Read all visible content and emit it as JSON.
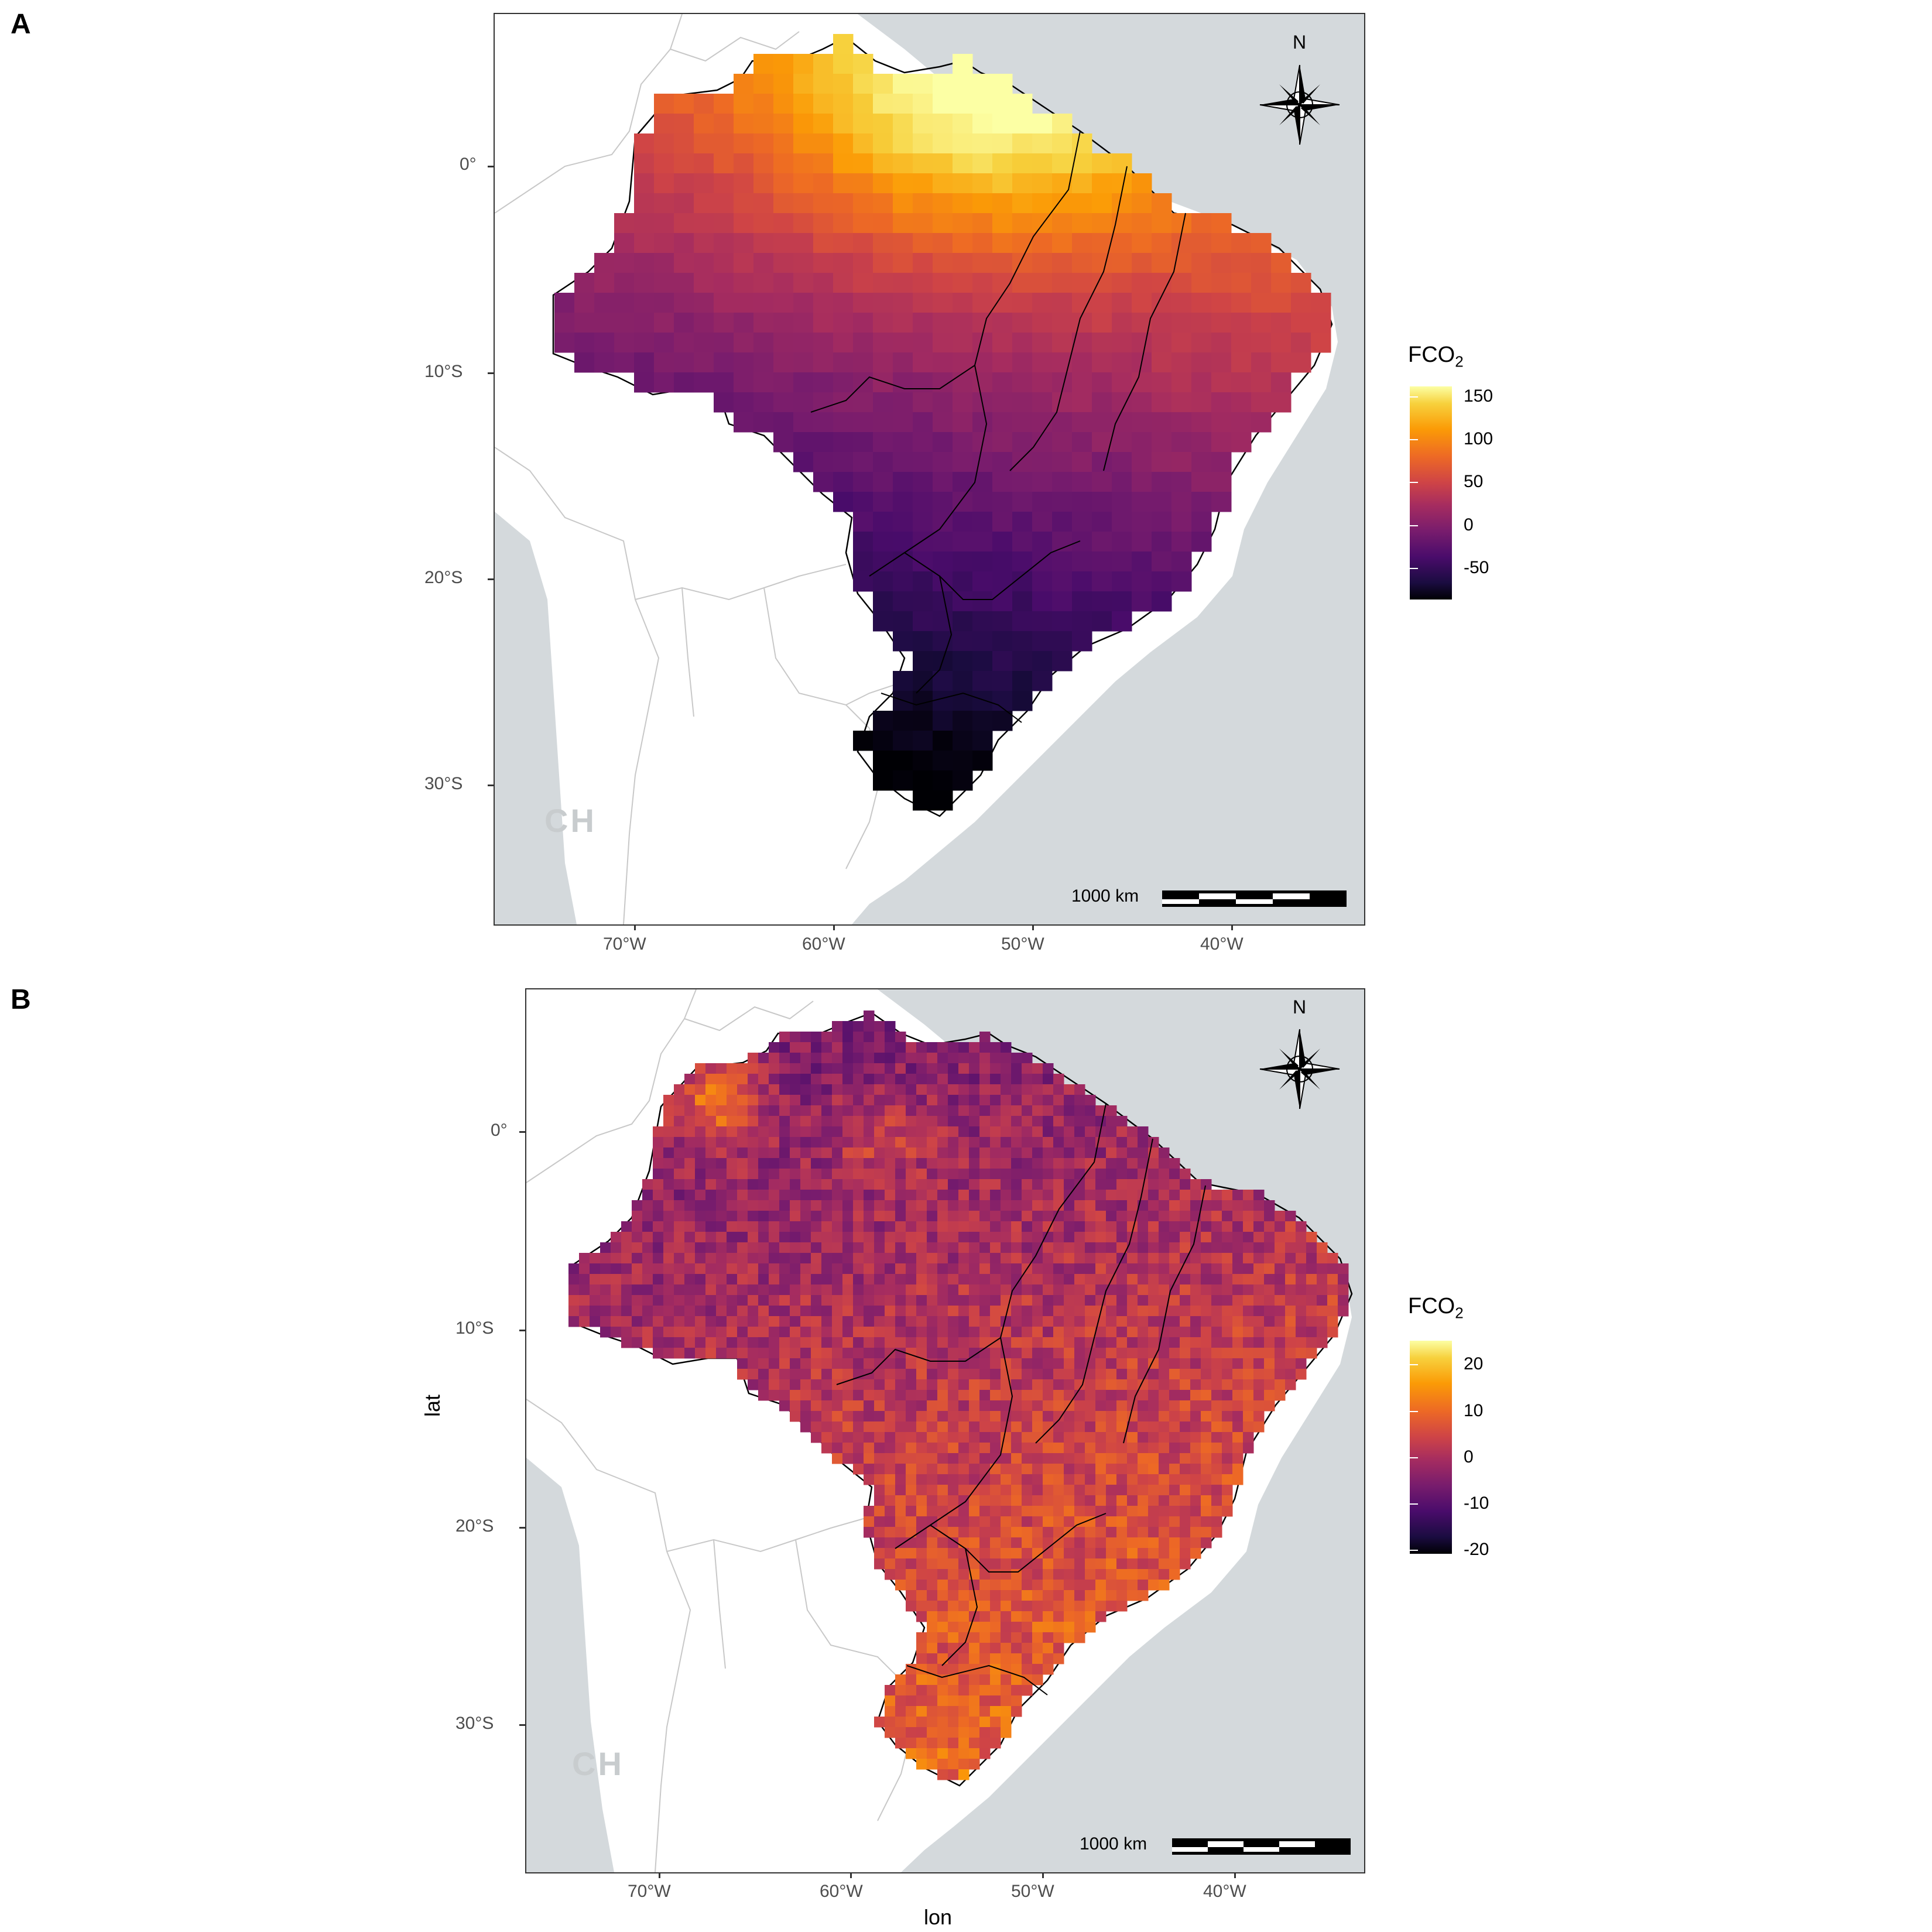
{
  "panels": [
    {
      "letter": "A",
      "legend_title": "FCO",
      "legend_sub": "2",
      "legend_ticks": [
        "150",
        "100",
        "50",
        "0",
        "-50"
      ],
      "y_ticks": [
        "0°",
        "10°S",
        "20°S",
        "30°S"
      ],
      "x_ticks": [
        "70°W",
        "60°W",
        "50°W",
        "40°W"
      ],
      "scalebar_label": "1000 km",
      "north_label": "N",
      "watermark": "CH",
      "value_range": [
        -80,
        160
      ]
    },
    {
      "letter": "B",
      "legend_title": "FCO",
      "legend_sub": "2",
      "legend_ticks": [
        "20",
        "10",
        "0",
        "-10",
        "-20"
      ],
      "y_ticks": [
        "0°",
        "10°S",
        "20°S",
        "30°S"
      ],
      "x_ticks": [
        "70°W",
        "60°W",
        "50°W",
        "40°W"
      ],
      "scalebar_label": "1000 km",
      "north_label": "N",
      "watermark": "CH",
      "axis_x_title": "lon",
      "axis_y_title": "lat",
      "value_range": [
        -22,
        24
      ]
    }
  ],
  "colors": {
    "ocean": "#d4d9dc",
    "land": "#ffffff",
    "border_grey": "#c8c8c8",
    "outline": "#000000",
    "inferno_low": "#000004",
    "inferno_mid": "#bc3754",
    "inferno_high": "#fcffa4"
  }
}
